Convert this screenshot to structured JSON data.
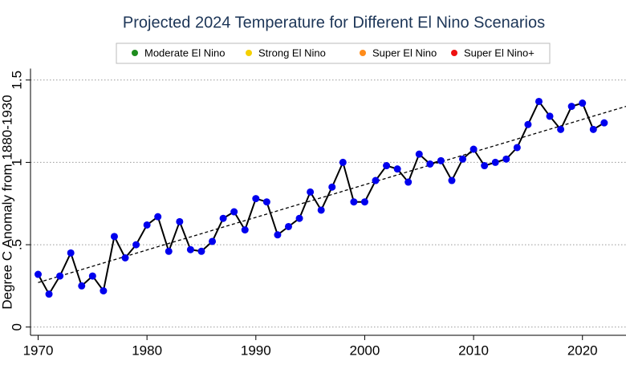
{
  "chart_data": {
    "type": "line",
    "title": "Projected 2024 Temperature for Different El Nino Scenarios",
    "y_label": "Degree C Anomaly from 1880-1930",
    "legend": [
      {
        "name": "Moderate El Nino",
        "color": "#1e8c1e"
      },
      {
        "name": "Strong El Nino",
        "color": "#f5d000"
      },
      {
        "name": "Super El Nino",
        "color": "#ff8c1a"
      },
      {
        "name": "Super El Nino+",
        "color": "#ee1111"
      }
    ],
    "x": [
      1970,
      1971,
      1972,
      1973,
      1974,
      1975,
      1976,
      1977,
      1978,
      1979,
      1980,
      1981,
      1982,
      1983,
      1984,
      1985,
      1986,
      1987,
      1988,
      1989,
      1990,
      1991,
      1992,
      1993,
      1994,
      1995,
      1996,
      1997,
      1998,
      1999,
      2000,
      2001,
      2002,
      2003,
      2004,
      2005,
      2006,
      2007,
      2008,
      2009,
      2010,
      2011,
      2012,
      2013,
      2014,
      2015,
      2016,
      2017,
      2018,
      2019,
      2020,
      2021,
      2022
    ],
    "values": [
      0.32,
      0.2,
      0.31,
      0.45,
      0.25,
      0.31,
      0.22,
      0.55,
      0.42,
      0.5,
      0.62,
      0.67,
      0.46,
      0.64,
      0.47,
      0.46,
      0.52,
      0.66,
      0.7,
      0.59,
      0.78,
      0.76,
      0.56,
      0.61,
      0.66,
      0.82,
      0.71,
      0.85,
      1.0,
      0.76,
      0.76,
      0.89,
      0.98,
      0.96,
      0.88,
      1.05,
      0.99,
      1.01,
      0.89,
      1.02,
      1.08,
      0.98,
      1.0,
      1.02,
      1.09,
      1.23,
      1.37,
      1.28,
      1.2,
      1.34,
      1.36,
      1.2,
      1.24
    ],
    "line_color": "#000000",
    "marker_color": "#0000ee",
    "trend": {
      "x": [
        1970,
        2024
      ],
      "values": [
        0.27,
        1.34
      ],
      "color": "#000000"
    },
    "xlim": [
      1969.3,
      2024
    ],
    "xticks": [
      1970,
      1980,
      1990,
      2000,
      2010,
      2020
    ],
    "ylim": [
      -0.05,
      1.55
    ],
    "yticks": [
      0,
      {
        "value": 0.5,
        "label": ".5"
      },
      1,
      1.5
    ],
    "grid": true
  }
}
